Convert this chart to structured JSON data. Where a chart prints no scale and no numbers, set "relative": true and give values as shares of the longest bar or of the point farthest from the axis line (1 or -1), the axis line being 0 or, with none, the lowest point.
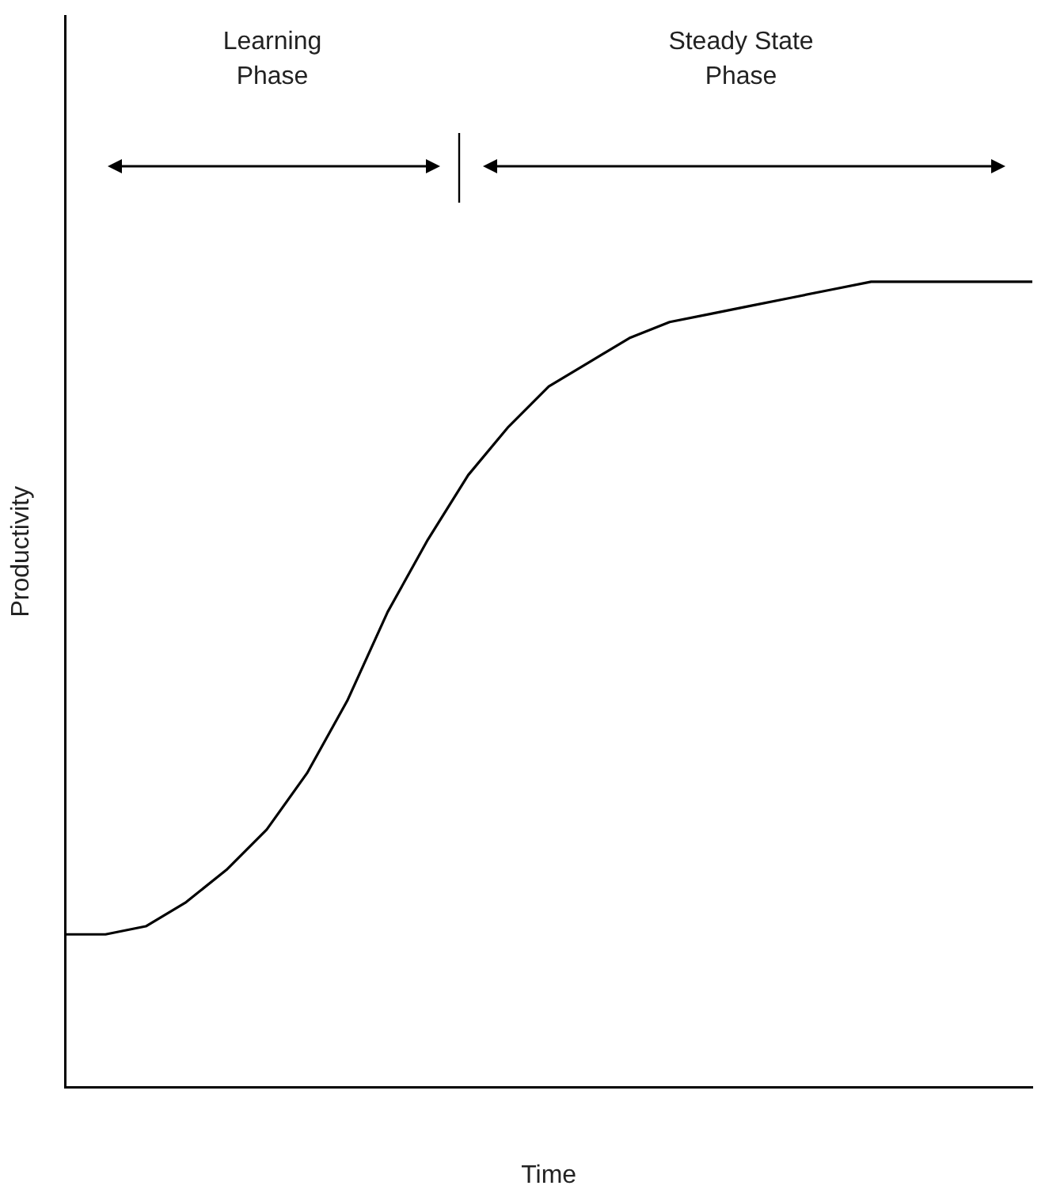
{
  "chart_data": {
    "type": "line",
    "relative": true,
    "xlabel": "Time",
    "ylabel": "Productivity",
    "categories": [
      null,
      null,
      null,
      null,
      null,
      null,
      null,
      null,
      null,
      null,
      null,
      null,
      null,
      null,
      null,
      null,
      null,
      null,
      null,
      null,
      null,
      null,
      null,
      null,
      null
    ],
    "series": [
      {
        "color": "#000000",
        "values": [
          0.19,
          0.19,
          0.2,
          0.23,
          0.27,
          0.32,
          0.39,
          0.48,
          0.59,
          0.68,
          0.76,
          0.82,
          0.87,
          0.9,
          0.93,
          0.95,
          0.96,
          0.97,
          0.98,
          0.99,
          1,
          1,
          1,
          1,
          1
        ]
      }
    ],
    "annotations": [
      "Learning Phase",
      "Steady State Phase"
    ],
    "marker": "none",
    "line_style": "solid",
    "grid": false,
    "legend": false,
    "tick_labels": false
  }
}
